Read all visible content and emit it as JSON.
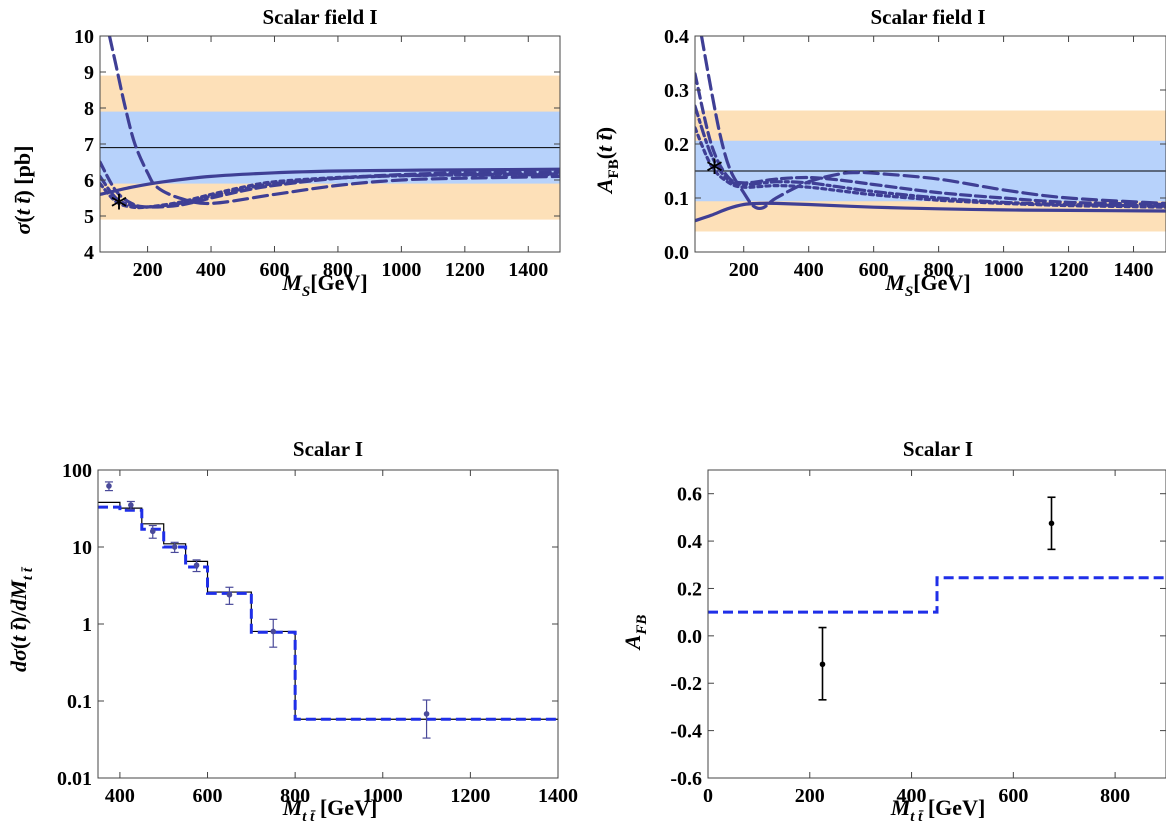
{
  "chart_data": [
    {
      "type": "line",
      "title": "Scalar field I",
      "xlabel": "M_S[GeV]",
      "ylabel": "σ(tt̄) [pb]",
      "xlim": [
        50,
        1500
      ],
      "ylim": [
        4,
        10
      ],
      "xticks": [
        "200",
        "400",
        "600",
        "800",
        "1000",
        "1200",
        "1400"
      ],
      "yticks": [
        "4",
        "5",
        "6",
        "7",
        "8",
        "9",
        "10"
      ],
      "bands": [
        {
          "from": 4.9,
          "to": 8.9,
          "color": "#fde0b8"
        },
        {
          "from": 5.9,
          "to": 7.9,
          "color": "#b7d2fb"
        }
      ],
      "reference_line": 6.9,
      "marker": {
        "x": 110,
        "y": 5.3,
        "symbol": "*"
      },
      "series": [
        {
          "style": "solid",
          "x": [
            50,
            150,
            250,
            400,
            600,
            800,
            1000,
            1200,
            1500
          ],
          "y": [
            5.6,
            5.8,
            5.95,
            6.1,
            6.2,
            6.25,
            6.27,
            6.28,
            6.3
          ]
        },
        {
          "style": "dash-long",
          "x": [
            80,
            100,
            130,
            160,
            200,
            230,
            300,
            400,
            600,
            800,
            1000,
            1200,
            1500
          ],
          "y": [
            10,
            9.2,
            8.0,
            7.0,
            6.2,
            5.8,
            5.5,
            5.35,
            5.6,
            5.85,
            6.0,
            6.05,
            6.1
          ]
        },
        {
          "style": "dash",
          "x": [
            50,
            100,
            150,
            200,
            300,
            400,
            500,
            600,
            800,
            1000,
            1200,
            1500
          ],
          "y": [
            6.5,
            5.7,
            5.35,
            5.25,
            5.3,
            5.5,
            5.7,
            5.85,
            6.05,
            6.15,
            6.2,
            6.22
          ]
        },
        {
          "style": "dash-dot",
          "x": [
            50,
            100,
            150,
            200,
            300,
            400,
            500,
            600,
            800,
            1000,
            1200,
            1500
          ],
          "y": [
            6.1,
            5.5,
            5.3,
            5.25,
            5.35,
            5.55,
            5.75,
            5.9,
            6.05,
            6.12,
            6.15,
            6.17
          ]
        },
        {
          "style": "dot",
          "x": [
            50,
            100,
            150,
            200,
            300,
            400,
            500,
            600,
            800,
            1000,
            1200,
            1500
          ],
          "y": [
            5.9,
            5.4,
            5.25,
            5.25,
            5.38,
            5.6,
            5.8,
            5.95,
            6.07,
            6.12,
            6.14,
            6.15
          ]
        }
      ]
    },
    {
      "type": "line",
      "title": "Scalar field I",
      "xlabel": "M_S[GeV]",
      "ylabel": "A_FB(tt̄)",
      "xlim": [
        50,
        1500
      ],
      "ylim": [
        0.0,
        0.4
      ],
      "xticks": [
        "200",
        "400",
        "600",
        "800",
        "1000",
        "1200",
        "1400"
      ],
      "yticks": [
        "0.0",
        "0.1",
        "0.2",
        "0.3",
        "0.4"
      ],
      "bands": [
        {
          "from": 0.038,
          "to": 0.262,
          "color": "#fde0b8"
        },
        {
          "from": 0.094,
          "to": 0.206,
          "color": "#b7d2fb"
        }
      ],
      "reference_line": 0.15,
      "marker": {
        "x": 110,
        "y": 0.153,
        "symbol": "*"
      },
      "series": [
        {
          "style": "solid",
          "x": [
            50,
            100,
            150,
            200,
            250,
            300,
            400,
            600,
            800,
            1000,
            1200,
            1500
          ],
          "y": [
            0.058,
            0.068,
            0.08,
            0.088,
            0.09,
            0.09,
            0.088,
            0.083,
            0.08,
            0.078,
            0.077,
            0.076
          ]
        },
        {
          "style": "dash-long",
          "x": [
            70,
            100,
            130,
            160,
            200,
            230,
            260,
            300,
            400,
            500,
            550,
            600,
            800,
            1000,
            1200,
            1500
          ],
          "y": [
            0.4,
            0.3,
            0.21,
            0.15,
            0.11,
            0.085,
            0.082,
            0.1,
            0.13,
            0.145,
            0.147,
            0.146,
            0.135,
            0.115,
            0.1,
            0.09
          ]
        },
        {
          "style": "dash",
          "x": [
            50,
            100,
            150,
            200,
            300,
            400,
            500,
            600,
            800,
            1000,
            1200,
            1500
          ],
          "y": [
            0.33,
            0.2,
            0.14,
            0.128,
            0.135,
            0.138,
            0.133,
            0.125,
            0.11,
            0.1,
            0.092,
            0.088
          ]
        },
        {
          "style": "dash-dot",
          "x": [
            50,
            100,
            150,
            200,
            300,
            400,
            500,
            600,
            800,
            1000,
            1200,
            1500
          ],
          "y": [
            0.27,
            0.18,
            0.135,
            0.125,
            0.13,
            0.128,
            0.12,
            0.112,
            0.1,
            0.092,
            0.088,
            0.085
          ]
        },
        {
          "style": "dot",
          "x": [
            50,
            100,
            150,
            200,
            300,
            400,
            500,
            600,
            800,
            1000,
            1200,
            1500
          ],
          "y": [
            0.23,
            0.16,
            0.13,
            0.12,
            0.123,
            0.12,
            0.113,
            0.106,
            0.096,
            0.09,
            0.086,
            0.083
          ]
        }
      ]
    },
    {
      "type": "step",
      "title": "Scalar I",
      "xlabel": "M_tt̄ [GeV]",
      "ylabel": "dσ(tt̄)/dM_tt̄",
      "xlim": [
        350,
        1400
      ],
      "ylim": [
        0.01,
        100
      ],
      "log_y": true,
      "xticks": [
        "400",
        "600",
        "800",
        "1000",
        "1200",
        "1400"
      ],
      "yticks": [
        "0.01",
        "0.1",
        "1",
        "10",
        "100"
      ],
      "bin_edges": [
        350,
        400,
        450,
        500,
        550,
        600,
        700,
        800,
        1400
      ],
      "sm_values": [
        38,
        32,
        20,
        11,
        6.5,
        2.6,
        0.8,
        0.058
      ],
      "model_values": [
        33,
        30,
        17,
        10,
        5.5,
        2.5,
        0.78,
        0.058
      ],
      "data_points": [
        {
          "x": 375,
          "y": 62,
          "err_lo": 54,
          "err_hi": 70
        },
        {
          "x": 425,
          "y": 35,
          "err_lo": 31,
          "err_hi": 39
        },
        {
          "x": 475,
          "y": 16,
          "err_lo": 13,
          "err_hi": 19
        },
        {
          "x": 525,
          "y": 10,
          "err_lo": 8.5,
          "err_hi": 11.5
        },
        {
          "x": 575,
          "y": 5.8,
          "err_lo": 4.8,
          "err_hi": 6.8
        },
        {
          "x": 650,
          "y": 2.4,
          "err_lo": 1.8,
          "err_hi": 3.0
        },
        {
          "x": 750,
          "y": 0.8,
          "err_lo": 0.5,
          "err_hi": 1.15
        },
        {
          "x": 1100,
          "y": 0.068,
          "err_lo": 0.033,
          "err_hi": 0.103
        }
      ]
    },
    {
      "type": "step",
      "title": "Scalar I",
      "xlabel": "M_tt̄ [GeV]",
      "ylabel": "A_FB",
      "xlim": [
        0,
        900
      ],
      "ylim": [
        -0.6,
        0.7
      ],
      "xticks": [
        "0",
        "200",
        "400",
        "600",
        "800"
      ],
      "yticks": [
        "-0.6",
        "-0.4",
        "-0.2",
        "0.0",
        "0.2",
        "0.4",
        "0.6"
      ],
      "bin_edges": [
        0,
        450,
        900
      ],
      "model_values": [
        0.1,
        0.245
      ],
      "data_points": [
        {
          "x": 225,
          "y": -0.12,
          "err_lo": -0.27,
          "err_hi": 0.035
        },
        {
          "x": 675,
          "y": 0.475,
          "err_lo": 0.365,
          "err_hi": 0.585
        }
      ]
    }
  ],
  "colors": {
    "curve": "#3f3f95",
    "band_outer": "#fde0b8",
    "band_inner": "#b7d2fb",
    "model_step": "#1f2fe8",
    "sm_step": "#000000",
    "data_points_lower_left": "#4a4a9a",
    "data_points_lower_right": "#000000"
  }
}
